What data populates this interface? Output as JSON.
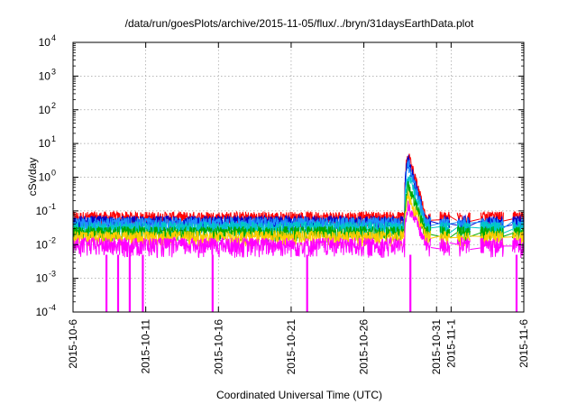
{
  "chart_data": {
    "type": "line",
    "title": "/data/run/goesPlots/archive/2015-11-05/flux/../bryn/31daysEarthData.plot",
    "xlabel": "Coordinated Universal Time (UTC)",
    "ylabel": "cSv/day",
    "yscale": "log",
    "ylim": [
      0.0001,
      10000
    ],
    "xlim": [
      "2015-10-06",
      "2015-11-06"
    ],
    "grid": true,
    "legend": "none",
    "y_ticks": [
      {
        "value": 0.0001,
        "base": "10",
        "exp": "-4"
      },
      {
        "value": 0.001,
        "base": "10",
        "exp": "-3"
      },
      {
        "value": 0.01,
        "base": "10",
        "exp": "-2"
      },
      {
        "value": 0.1,
        "base": "10",
        "exp": "-1"
      },
      {
        "value": 1,
        "base": "10",
        "exp": "0"
      },
      {
        "value": 10,
        "base": "10",
        "exp": "1"
      },
      {
        "value": 100,
        "base": "10",
        "exp": "2"
      },
      {
        "value": 1000,
        "base": "10",
        "exp": "3"
      },
      {
        "value": 10000,
        "base": "10",
        "exp": "4"
      }
    ],
    "x_ticks": [
      {
        "day": 0,
        "label": "2015-10-6"
      },
      {
        "day": 5,
        "label": "2015-10-11"
      },
      {
        "day": 10,
        "label": "2015-10-16"
      },
      {
        "day": 15,
        "label": "2015-10-21"
      },
      {
        "day": 20,
        "label": "2015-10-26"
      },
      {
        "day": 25,
        "label": "2015-10-31"
      },
      {
        "day": 26,
        "label": "2015-11-1"
      },
      {
        "day": 31,
        "label": "2015-11-6"
      }
    ],
    "series": [
      {
        "color": "#ff0000",
        "base": 0.06,
        "spike_peak": 5.0
      },
      {
        "color": "#0000cc",
        "base": 0.045,
        "spike_peak": 3.5
      },
      {
        "color": "#1e90ff",
        "base": 0.04,
        "spike_peak": 2.5
      },
      {
        "color": "#00c8c8",
        "base": 0.03,
        "spike_peak": 1.2
      },
      {
        "color": "#00aa00",
        "base": 0.022,
        "spike_peak": 0.6
      },
      {
        "color": "#ffcc00",
        "base": 0.016,
        "spike_peak": 0.3
      },
      {
        "color": "#ff00ff",
        "base": 0.01,
        "spike_peak": 0.15
      }
    ],
    "events": {
      "spike_start_day": 22.8,
      "spike_decay_end_day": 24.3,
      "gaps": [
        [
          24.6,
          25.2
        ],
        [
          25.9,
          26.4
        ],
        [
          27.3,
          28.0
        ],
        [
          29.6,
          30.2
        ]
      ],
      "dropouts_day": [
        2.3,
        3.1,
        3.9,
        4.8,
        9.6,
        16.1,
        23.2,
        30.5
      ]
    }
  }
}
